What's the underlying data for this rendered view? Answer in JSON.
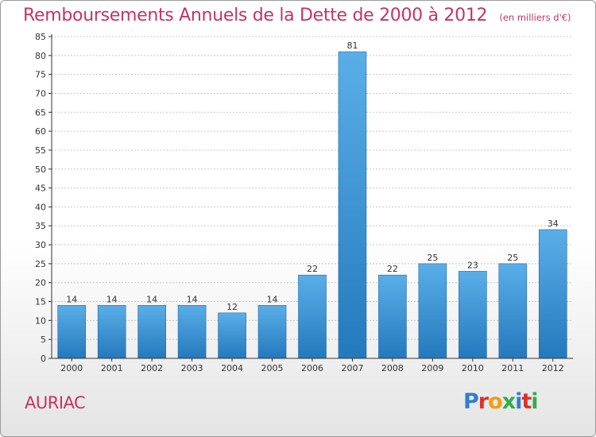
{
  "title": "Remboursements Annuels de la Dette de 2000 à 2012",
  "unit": "(en milliers d'€)",
  "commune": "AURIAC",
  "brand": {
    "letters": [
      "P",
      "r",
      "o",
      "x",
      "i",
      "t",
      "i"
    ],
    "colors": [
      "#2f7fd0",
      "#e0302a",
      "#f39c12",
      "#2fae4a",
      "#2f7fd0",
      "#e0302a",
      "#2fae4a"
    ]
  },
  "colors": {
    "accent": "#c83264",
    "bar_top": "#5aaee8",
    "bar_bottom": "#2479bd",
    "grid": "#c8c8c8",
    "axis": "#333333"
  },
  "chart_data": {
    "type": "bar",
    "categories": [
      "2000",
      "2001",
      "2002",
      "2003",
      "2004",
      "2005",
      "2006",
      "2007",
      "2008",
      "2009",
      "2010",
      "2011",
      "2012"
    ],
    "values": [
      14,
      14,
      14,
      14,
      12,
      14,
      22,
      81,
      22,
      25,
      23,
      25,
      34
    ],
    "data_labels": [
      "14",
      "14",
      "14",
      "14",
      "12",
      "14",
      "22",
      "81",
      "22",
      "25",
      "23",
      "25",
      "34"
    ],
    "title": "Remboursements Annuels de la Dette de 2000 à 2012",
    "xlabel": "",
    "ylabel": "",
    "ylim": [
      0,
      85
    ],
    "yticks": [
      0,
      5,
      10,
      15,
      20,
      25,
      30,
      35,
      40,
      45,
      50,
      55,
      60,
      65,
      70,
      75,
      80,
      85
    ],
    "grid": true,
    "legend": "none"
  }
}
